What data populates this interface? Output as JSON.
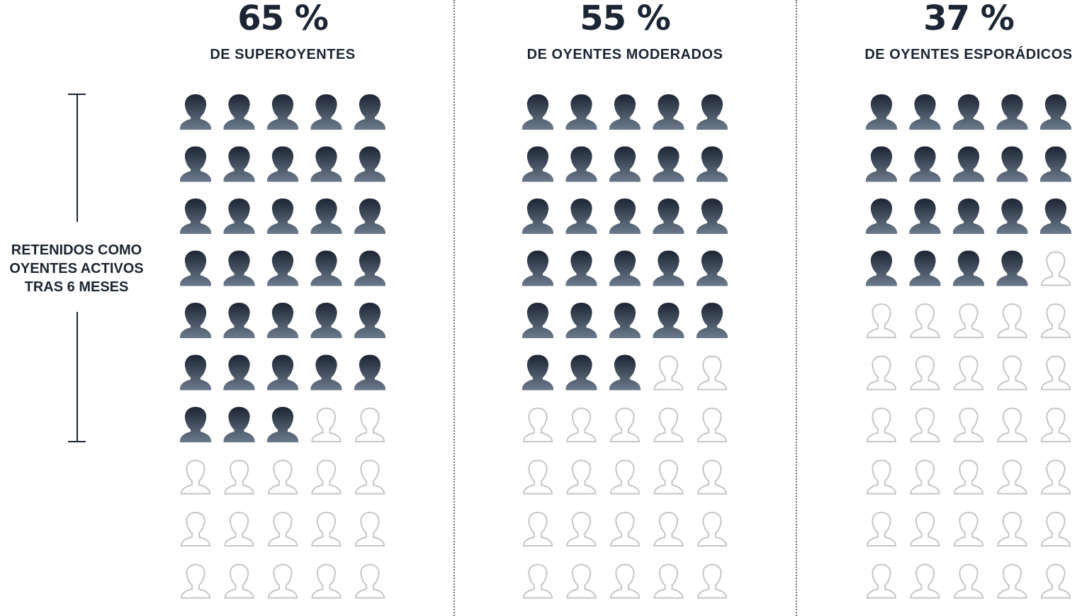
{
  "chart_data": {
    "type": "pictograph",
    "title": "",
    "icons_per_group": 50,
    "icons_per_row": 5,
    "colors": {
      "filled": "#1c2533",
      "filled_gradient_end": "#6b7a8b",
      "empty_outline": "#c3c6ca"
    },
    "side_label": [
      "RETENIDOS COMO",
      "OYENTES ACTIVOS",
      "TRAS 6 MESES"
    ],
    "groups": [
      {
        "percent_label": "65 %",
        "label": "DE SUPEROYENTES",
        "value": 65,
        "filled_icons": 33
      },
      {
        "percent_label": "55 %",
        "label": "DE OYENTES MODERADOS",
        "value": 55,
        "filled_icons": 28
      },
      {
        "percent_label": "37 %",
        "label": "DE OYENTES ESPORÁDICOS",
        "value": 37,
        "filled_icons": 19
      }
    ]
  }
}
